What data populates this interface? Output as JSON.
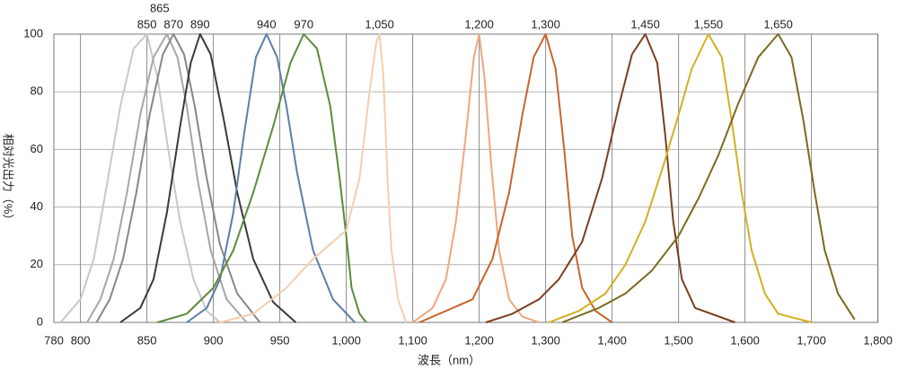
{
  "chart_data": {
    "type": "line",
    "x_label": "波長（nm）",
    "y_label": "相対光出力（%）",
    "xlim": [
      780,
      1800
    ],
    "xticks": [
      780,
      800,
      850,
      900,
      950,
      {
        "value": 1000,
        "label": "1,000"
      },
      {
        "value": 1100,
        "label": "1,100"
      },
      {
        "value": 1200,
        "label": "1,200"
      },
      {
        "value": 1300,
        "label": "1,300"
      },
      {
        "value": 1400,
        "label": "1,400"
      },
      {
        "value": 1500,
        "label": "1,500"
      },
      {
        "value": 1600,
        "label": "1,600"
      },
      {
        "value": 1700,
        "label": "1,700"
      },
      {
        "value": 1800,
        "label": "1,800"
      }
    ],
    "ylim": [
      0,
      100
    ],
    "yticks": [
      0,
      20,
      40,
      60,
      80,
      100
    ],
    "grid": true,
    "series": [
      {
        "name": "850",
        "color": "#c8c8c8",
        "x": [
          785,
          800,
          810,
          820,
          830,
          840,
          850,
          858,
          866,
          875,
          885,
          895,
          905
        ],
        "values": [
          0,
          8,
          22,
          48,
          75,
          95,
          100,
          85,
          60,
          35,
          15,
          4,
          0
        ]
      },
      {
        "name": "865",
        "color": "#a6a6a6",
        "x": [
          805,
          815,
          825,
          835,
          845,
          855,
          865,
          873,
          880,
          888,
          898,
          910,
          925
        ],
        "values": [
          0,
          8,
          22,
          45,
          72,
          92,
          100,
          92,
          75,
          50,
          25,
          8,
          0
        ]
      },
      {
        "name": "870",
        "color": "#878787",
        "x": [
          812,
          822,
          832,
          842,
          852,
          862,
          870,
          878,
          886,
          895,
          905,
          918,
          935
        ],
        "values": [
          0,
          8,
          22,
          45,
          72,
          93,
          100,
          93,
          75,
          50,
          27,
          10,
          0
        ]
      },
      {
        "name": "890",
        "color": "#3a3a3a",
        "x": [
          830,
          845,
          855,
          865,
          875,
          883,
          890,
          898,
          908,
          918,
          930,
          945,
          962
        ],
        "values": [
          0,
          5,
          15,
          38,
          68,
          90,
          100,
          93,
          70,
          45,
          22,
          7,
          0
        ]
      },
      {
        "name": "940",
        "color": "#5b7fa8",
        "x": [
          880,
          895,
          905,
          915,
          923,
          932,
          940,
          948,
          955,
          963,
          975,
          990,
          1013
        ],
        "values": [
          0,
          5,
          15,
          38,
          65,
          92,
          100,
          92,
          75,
          52,
          25,
          8,
          0
        ]
      },
      {
        "name": "970",
        "color": "#5e8a3a",
        "x": [
          858,
          880,
          900,
          915,
          930,
          945,
          958,
          968,
          978,
          988,
          995,
          1000,
          1008,
          1020,
          1030
        ],
        "values": [
          0,
          3,
          12,
          25,
          45,
          68,
          90,
          100,
          95,
          75,
          50,
          30,
          12,
          3,
          0
        ]
      },
      {
        "name": "1,050",
        "color": "#f5cdb0",
        "x": [
          905,
          930,
          955,
          975,
          1000,
          1020,
          1035,
          1045,
          1050,
          1056,
          1062,
          1068,
          1078,
          1090
        ],
        "values": [
          0,
          3,
          12,
          22,
          32,
          50,
          80,
          97,
          100,
          85,
          50,
          25,
          8,
          0
        ]
      },
      {
        "name": "1,200",
        "color": "#eea682",
        "x": [
          1100,
          1130,
          1150,
          1165,
          1180,
          1192,
          1200,
          1208,
          1218,
          1230,
          1245,
          1265,
          1290
        ],
        "values": [
          0,
          5,
          15,
          35,
          65,
          92,
          100,
          85,
          55,
          25,
          8,
          2,
          0
        ]
      },
      {
        "name": "1,300",
        "color": "#c8652a",
        "x": [
          1110,
          1150,
          1190,
          1220,
          1245,
          1265,
          1282,
          1300,
          1315,
          1328,
          1340,
          1355,
          1375,
          1400
        ],
        "values": [
          0,
          4,
          8,
          22,
          45,
          72,
          92,
          100,
          88,
          60,
          30,
          12,
          4,
          0
        ]
      },
      {
        "name": "1,450",
        "color": "#7a3f1f",
        "x": [
          1210,
          1250,
          1290,
          1320,
          1355,
          1385,
          1410,
          1430,
          1450,
          1468,
          1480,
          1492,
          1505,
          1525,
          1585
        ],
        "values": [
          0,
          3,
          8,
          15,
          28,
          50,
          75,
          93,
          100,
          90,
          65,
          35,
          15,
          5,
          0
        ]
      },
      {
        "name": "1,550",
        "color": "#d4b020",
        "x": [
          1305,
          1350,
          1390,
          1420,
          1450,
          1478,
          1500,
          1520,
          1545,
          1565,
          1580,
          1595,
          1610,
          1630,
          1650,
          1700
        ],
        "values": [
          0,
          4,
          10,
          20,
          35,
          55,
          72,
          88,
          100,
          92,
          70,
          45,
          25,
          10,
          3,
          0
        ]
      },
      {
        "name": "1,650",
        "color": "#7a6a1e",
        "x": [
          1325,
          1380,
          1420,
          1460,
          1500,
          1530,
          1560,
          1590,
          1620,
          1650,
          1670,
          1688,
          1705,
          1720,
          1740,
          1765
        ],
        "values": [
          0,
          5,
          10,
          18,
          30,
          43,
          58,
          76,
          92,
          100,
          92,
          70,
          45,
          25,
          10,
          1
        ]
      }
    ]
  }
}
